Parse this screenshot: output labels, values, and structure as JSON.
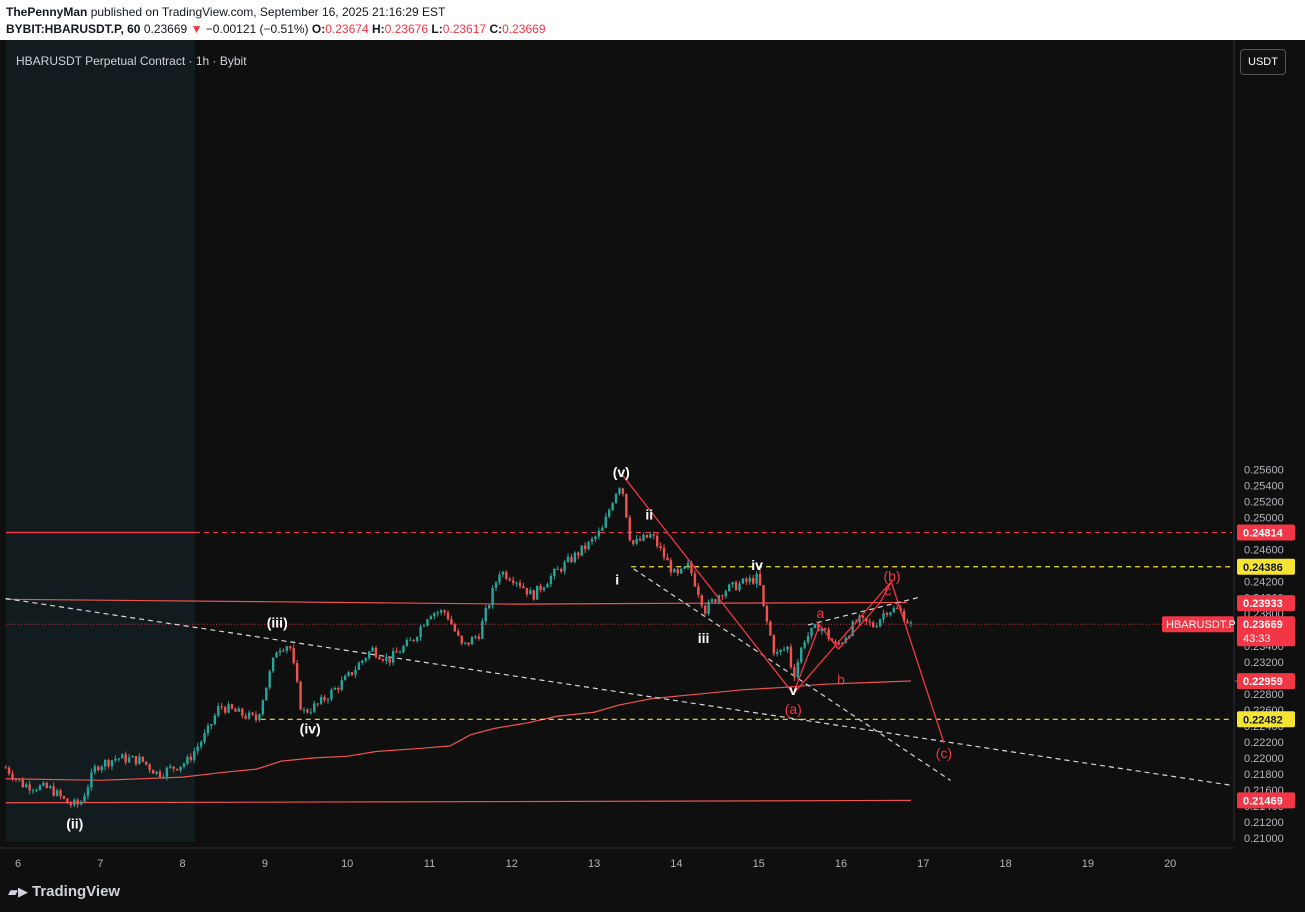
{
  "header": {
    "author": "ThePennyMan",
    "published_text": "published on TradingView.com, September 16, 2025 21:16:29 EST",
    "symbol_line": "BYBIT:HBARUSDT.P, 60",
    "last": "0.23669",
    "change": "−0.00121 (−0.51%)",
    "o_label": "O:",
    "o": "0.23674",
    "h_label": "H:",
    "h": "0.23676",
    "l_label": "L:",
    "l": "0.23617",
    "c_label": "C:",
    "c": "0.23669"
  },
  "legend": "HBARUSDT Perpetual Contract · 1h · Bybit",
  "currency_button": "USDT",
  "footer": {
    "logo": "TradingView"
  },
  "colors": {
    "bg": "#0f0f0f",
    "up": "#26a69a",
    "down": "#ef5350",
    "accent_red": "#f23645",
    "yellow": "#f5e431",
    "wave_white": "#ffffff"
  },
  "chart_data": {
    "type": "candlestick",
    "x_ticks": [
      "6",
      "7",
      "8",
      "9",
      "10",
      "11",
      "12",
      "13",
      "14",
      "15",
      "16",
      "17",
      "18",
      "19",
      "20"
    ],
    "y_ticks": [
      "0.25600",
      "0.25400",
      "0.25200",
      "0.25000",
      "0.24800",
      "0.24600",
      "0.24400",
      "0.24200",
      "0.24000",
      "0.23800",
      "0.23600",
      "0.23400",
      "0.23200",
      "0.23000",
      "0.22800",
      "0.22600",
      "0.22400",
      "0.22200",
      "0.22000",
      "0.21800",
      "0.21600",
      "0.21400",
      "0.21200",
      "0.21000"
    ],
    "ylim": [
      0.2091,
      0.2576
    ],
    "xlim": [
      5.85,
      20.9
    ],
    "price_labels": [
      {
        "value": 0.24814,
        "text": "0.24814",
        "style": "red"
      },
      {
        "value": 0.24386,
        "text": "0.24386",
        "style": "yellow"
      },
      {
        "value": 0.23933,
        "text": "0.23933",
        "style": "red"
      },
      {
        "value": 0.23669,
        "text": "0.23669",
        "style": "red",
        "countdown": "43:33",
        "symbol_tag": "HBARUSDT.P"
      },
      {
        "value": 0.22959,
        "text": "0.22959",
        "style": "red"
      },
      {
        "value": 0.22482,
        "text": "0.22482",
        "style": "yellow"
      },
      {
        "value": 0.21469,
        "text": "0.21469",
        "style": "red"
      }
    ],
    "wave_labels": [
      {
        "text": "(ii)",
        "x": 6.69,
        "y": 0.2118,
        "color": "white"
      },
      {
        "text": "(iii)",
        "x": 9.15,
        "y": 0.2369,
        "color": "white"
      },
      {
        "text": "(iv)",
        "x": 9.55,
        "y": 0.2237,
        "color": "white"
      },
      {
        "text": "(v)",
        "x": 13.33,
        "y": 0.2557,
        "color": "white"
      },
      {
        "text": "i",
        "x": 13.28,
        "y": 0.2423,
        "color": "white"
      },
      {
        "text": "ii",
        "x": 13.67,
        "y": 0.2504,
        "color": "white"
      },
      {
        "text": "iii",
        "x": 14.33,
        "y": 0.235,
        "color": "white"
      },
      {
        "text": "iv",
        "x": 14.98,
        "y": 0.2441,
        "color": "white"
      },
      {
        "text": "v",
        "x": 15.42,
        "y": 0.2285,
        "color": "white"
      },
      {
        "text": "(a)",
        "x": 15.42,
        "y": 0.2261,
        "color": "red"
      },
      {
        "text": "a",
        "x": 15.75,
        "y": 0.2381,
        "color": "red"
      },
      {
        "text": "b",
        "x": 16.0,
        "y": 0.2298,
        "color": "red"
      },
      {
        "text": "c",
        "x": 16.57,
        "y": 0.2409,
        "color": "red"
      },
      {
        "text": "(b)",
        "x": 16.62,
        "y": 0.2427,
        "color": "red"
      },
      {
        "text": "(c)",
        "x": 17.25,
        "y": 0.2206,
        "color": "red"
      }
    ],
    "red_path": [
      [
        13.33,
        0.2555
      ],
      [
        15.42,
        0.228
      ],
      [
        16.61,
        0.242
      ],
      [
        17.25,
        0.2219
      ]
    ],
    "red_zigzag": [
      [
        15.42,
        0.228
      ],
      [
        15.74,
        0.2366
      ],
      [
        15.97,
        0.2336
      ],
      [
        16.47,
        0.2393
      ],
      [
        16.61,
        0.242
      ]
    ],
    "white_dashed_lines": [
      [
        [
          5.85,
          0.2399
        ],
        [
          20.73,
          0.2166
        ]
      ],
      [
        [
          13.48,
          0.2436
        ],
        [
          17.33,
          0.2172
        ]
      ],
      [
        [
          15.6,
          0.2366
        ],
        [
          16.97,
          0.2401
        ]
      ]
    ],
    "horizontal_levels": [
      {
        "value": 0.24814,
        "solid_to": 8.15,
        "dashed_to": 20.9,
        "color": "red"
      },
      {
        "value": 0.24386,
        "from": 13.45,
        "to": 20.9,
        "color": "yellow",
        "dashed": true
      },
      {
        "value": 0.22482,
        "from": 8.95,
        "to": 20.9,
        "color": "yellow",
        "dashed": true
      },
      {
        "value": 0.22959,
        "from": 20.85,
        "to": 20.9,
        "color": "red",
        "dashed": true
      }
    ],
    "ma_long": [
      [
        5.85,
        0.2398
      ],
      [
        9,
        0.2395
      ],
      [
        12,
        0.2392
      ],
      [
        14,
        0.2393
      ],
      [
        16.8,
        0.2394
      ]
    ],
    "ma_low": [
      [
        5.85,
        0.2144
      ],
      [
        10,
        0.2145
      ],
      [
        14,
        0.2146
      ],
      [
        16.85,
        0.2147
      ]
    ],
    "ma_vwap": [
      [
        5.85,
        0.2174
      ],
      [
        7,
        0.2172
      ],
      [
        8,
        0.2176
      ],
      [
        8.5,
        0.2182
      ],
      [
        8.9,
        0.2186
      ],
      [
        9.2,
        0.2196
      ],
      [
        9.6,
        0.22
      ],
      [
        10,
        0.2202
      ],
      [
        10.35,
        0.2208
      ],
      [
        10.9,
        0.2212
      ],
      [
        11.25,
        0.2215
      ],
      [
        11.5,
        0.2229
      ],
      [
        11.8,
        0.2237
      ],
      [
        12.2,
        0.2244
      ],
      [
        12.55,
        0.2252
      ],
      [
        13.0,
        0.2257
      ],
      [
        13.3,
        0.2266
      ],
      [
        13.7,
        0.2274
      ],
      [
        14.3,
        0.228
      ],
      [
        14.8,
        0.2285
      ],
      [
        15.3,
        0.2288
      ],
      [
        15.8,
        0.2292
      ],
      [
        16.3,
        0.2294
      ],
      [
        16.85,
        0.2296
      ]
    ],
    "candle_path": [
      [
        5.85,
        0.2188
      ],
      [
        6.05,
        0.2167
      ],
      [
        6.4,
        0.2161
      ],
      [
        6.62,
        0.2142
      ],
      [
        6.75,
        0.2142
      ],
      [
        6.95,
        0.219
      ],
      [
        7.2,
        0.22
      ],
      [
        7.5,
        0.2197
      ],
      [
        7.7,
        0.218
      ],
      [
        8.05,
        0.2195
      ],
      [
        8.3,
        0.2232
      ],
      [
        8.45,
        0.2265
      ],
      [
        8.7,
        0.2255
      ],
      [
        8.9,
        0.2248
      ],
      [
        9.15,
        0.2338
      ],
      [
        9.3,
        0.2342
      ],
      [
        9.45,
        0.2256
      ],
      [
        9.65,
        0.2267
      ],
      [
        10.0,
        0.23
      ],
      [
        10.3,
        0.2336
      ],
      [
        10.5,
        0.2322
      ],
      [
        10.8,
        0.2348
      ],
      [
        11.0,
        0.2382
      ],
      [
        11.2,
        0.2382
      ],
      [
        11.4,
        0.2338
      ],
      [
        11.6,
        0.2355
      ],
      [
        11.85,
        0.2433
      ],
      [
        12.05,
        0.2423
      ],
      [
        12.25,
        0.2402
      ],
      [
        12.45,
        0.2424
      ],
      [
        12.75,
        0.2451
      ],
      [
        12.95,
        0.2468
      ],
      [
        13.1,
        0.2485
      ],
      [
        13.25,
        0.253
      ],
      [
        13.33,
        0.2545
      ],
      [
        13.45,
        0.2466
      ],
      [
        13.7,
        0.2478
      ],
      [
        14.0,
        0.2425
      ],
      [
        14.15,
        0.244
      ],
      [
        14.35,
        0.2385
      ],
      [
        14.55,
        0.2408
      ],
      [
        14.8,
        0.2418
      ],
      [
        15.0,
        0.2425
      ],
      [
        15.05,
        0.239
      ],
      [
        15.2,
        0.2328
      ],
      [
        15.35,
        0.2338
      ],
      [
        15.42,
        0.2301
      ],
      [
        15.55,
        0.2348
      ],
      [
        15.74,
        0.2366
      ],
      [
        15.95,
        0.2338
      ],
      [
        16.2,
        0.2372
      ],
      [
        16.4,
        0.2365
      ],
      [
        16.55,
        0.2385
      ],
      [
        16.7,
        0.2385
      ],
      [
        16.85,
        0.2366
      ]
    ]
  }
}
